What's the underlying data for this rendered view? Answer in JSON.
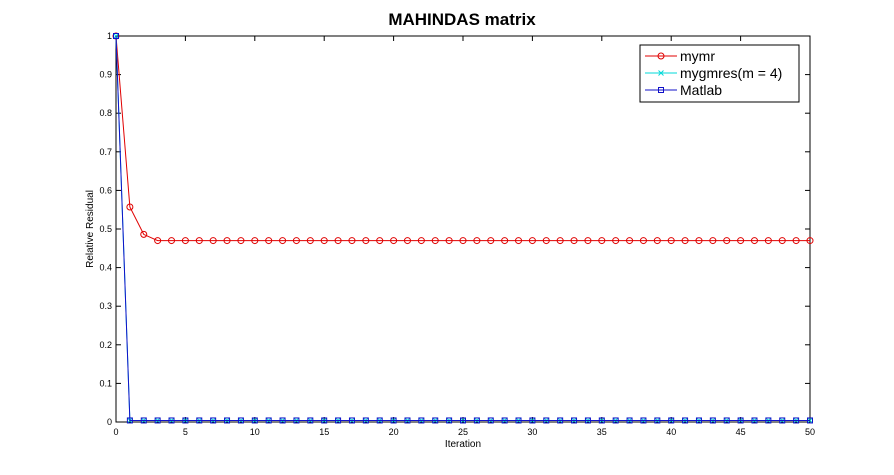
{
  "chart_data": {
    "type": "line",
    "title": "MAHINDAS matrix",
    "xlabel": "Iteration",
    "ylabel": "Relative Residual",
    "xlim": [
      0,
      50
    ],
    "ylim": [
      0,
      1
    ],
    "xticks": [
      0,
      5,
      10,
      15,
      20,
      25,
      30,
      35,
      40,
      45,
      50
    ],
    "yticks": [
      0,
      0.1,
      0.2,
      0.3,
      0.4,
      0.5,
      0.6,
      0.7,
      0.8,
      0.9,
      1
    ],
    "grid": false,
    "legend_position": "top-right",
    "series": [
      {
        "name": "mymr",
        "color": "#e00000",
        "marker": "circle",
        "x": [
          0,
          1,
          2,
          3,
          4,
          5,
          6,
          7,
          8,
          9,
          10,
          11,
          12,
          13,
          14,
          15,
          16,
          17,
          18,
          19,
          20,
          21,
          22,
          23,
          24,
          25,
          26,
          27,
          28,
          29,
          30,
          31,
          32,
          33,
          34,
          35,
          36,
          37,
          38,
          39,
          40,
          41,
          42,
          43,
          44,
          45,
          46,
          47,
          48,
          49,
          50
        ],
        "y": [
          1,
          0.557,
          0.486,
          0.47,
          0.47,
          0.47,
          0.47,
          0.47,
          0.47,
          0.47,
          0.47,
          0.47,
          0.47,
          0.47,
          0.47,
          0.47,
          0.47,
          0.47,
          0.47,
          0.47,
          0.47,
          0.47,
          0.47,
          0.47,
          0.47,
          0.47,
          0.47,
          0.47,
          0.47,
          0.47,
          0.47,
          0.47,
          0.47,
          0.47,
          0.47,
          0.47,
          0.47,
          0.47,
          0.47,
          0.47,
          0.47,
          0.47,
          0.47,
          0.47,
          0.47,
          0.47,
          0.47,
          0.47,
          0.47,
          0.47,
          0.47
        ]
      },
      {
        "name": "mygmres(m = 4)",
        "color": "#00d8d8",
        "marker": "x",
        "x": [
          0,
          1,
          2,
          3,
          4,
          5,
          6,
          7,
          8,
          9,
          10,
          11,
          12,
          13,
          14,
          15,
          16,
          17,
          18,
          19,
          20,
          21,
          22,
          23,
          24,
          25,
          26,
          27,
          28,
          29,
          30,
          31,
          32,
          33,
          34,
          35,
          36,
          37,
          38,
          39,
          40,
          41,
          42,
          43,
          44,
          45,
          46,
          47,
          48,
          49,
          50
        ],
        "y": [
          1,
          0.004,
          0.004,
          0.004,
          0.004,
          0.004,
          0.004,
          0.004,
          0.004,
          0.004,
          0.004,
          0.004,
          0.004,
          0.004,
          0.004,
          0.004,
          0.004,
          0.004,
          0.004,
          0.004,
          0.004,
          0.004,
          0.004,
          0.004,
          0.004,
          0.004,
          0.004,
          0.004,
          0.004,
          0.004,
          0.004,
          0.004,
          0.004,
          0.004,
          0.004,
          0.004,
          0.004,
          0.004,
          0.004,
          0.004,
          0.004,
          0.004,
          0.004,
          0.004,
          0.004,
          0.004,
          0.004,
          0.004,
          0.004,
          0.004,
          0.004
        ]
      },
      {
        "name": "Matlab",
        "color": "#1010c8",
        "marker": "square",
        "x": [
          0,
          1,
          2,
          3,
          4,
          5,
          6,
          7,
          8,
          9,
          10,
          11,
          12,
          13,
          14,
          15,
          16,
          17,
          18,
          19,
          20,
          21,
          22,
          23,
          24,
          25,
          26,
          27,
          28,
          29,
          30,
          31,
          32,
          33,
          34,
          35,
          36,
          37,
          38,
          39,
          40,
          41,
          42,
          43,
          44,
          45,
          46,
          47,
          48,
          49,
          50
        ],
        "y": [
          1,
          0.004,
          0.004,
          0.004,
          0.004,
          0.004,
          0.004,
          0.004,
          0.004,
          0.004,
          0.004,
          0.004,
          0.004,
          0.004,
          0.004,
          0.004,
          0.004,
          0.004,
          0.004,
          0.004,
          0.004,
          0.004,
          0.004,
          0.004,
          0.004,
          0.004,
          0.004,
          0.004,
          0.004,
          0.004,
          0.004,
          0.004,
          0.004,
          0.004,
          0.004,
          0.004,
          0.004,
          0.004,
          0.004,
          0.004,
          0.004,
          0.004,
          0.004,
          0.004,
          0.004,
          0.004,
          0.004,
          0.004,
          0.004,
          0.004,
          0.004
        ]
      }
    ]
  }
}
